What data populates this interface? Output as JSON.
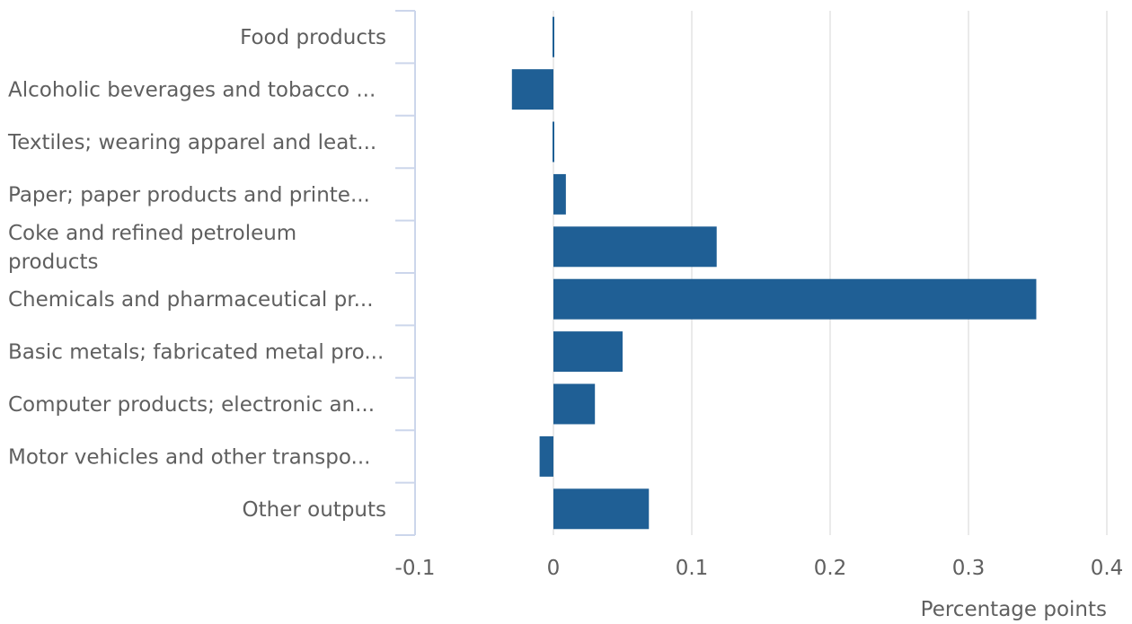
{
  "chart_data": {
    "type": "bar",
    "orientation": "horizontal",
    "categories": [
      "Food products",
      "Alcoholic beverages and tobacco ...",
      "Textiles; wearing apparel and leat...",
      "Paper; paper products and printe...",
      "Coke and refined petroleum products",
      "Chemicals and pharmaceutical pr...",
      "Basic metals; fabricated metal pro...",
      "Computer products; electronic an...",
      "Motor vehicles and other transpo...",
      "Other outputs"
    ],
    "category_lines": [
      [
        "Food products"
      ],
      [
        "Alcoholic beverages and tobacco ..."
      ],
      [
        "Textiles; wearing apparel and leat..."
      ],
      [
        "Paper; paper products and printe..."
      ],
      [
        "Coke and refined petroleum",
        "products"
      ],
      [
        "Chemicals and pharmaceutical pr..."
      ],
      [
        "Basic metals; fabricated metal pro..."
      ],
      [
        "Computer products; electronic an..."
      ],
      [
        "Motor vehicles and other transpo..."
      ],
      [
        "Other outputs"
      ]
    ],
    "values": [
      0.001,
      -0.03,
      0.001,
      0.009,
      0.118,
      0.349,
      0.05,
      0.03,
      -0.01,
      0.069
    ],
    "xlabel": "Percentage points",
    "ylabel": "",
    "xlim": [
      -0.1,
      0.4
    ],
    "xticks": [
      -0.1,
      0,
      0.1,
      0.2,
      0.3,
      0.4
    ],
    "xtick_labels": [
      "-0.1",
      "0",
      "0.1",
      "0.2",
      "0.3",
      "0.4"
    ],
    "grid": true,
    "legend": "none",
    "colors": {
      "bar": "#1f5f95",
      "grid": "#e4e4e4",
      "axis": "#ccd6eb",
      "text": "#5f5f5f"
    }
  }
}
